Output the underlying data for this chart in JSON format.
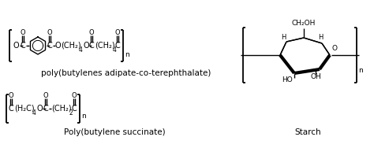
{
  "bg_color": "#ffffff",
  "fig_width": 4.74,
  "fig_height": 1.88,
  "dpi": 100,
  "label1": "poly(butylenes adipate-co-terephthalate)",
  "label2": "Poly(butylene succinate)",
  "label3": "Starch",
  "text_color": "#000000",
  "font_family": "Arial"
}
